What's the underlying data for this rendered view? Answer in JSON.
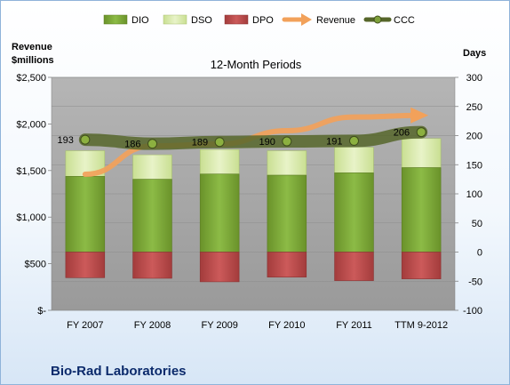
{
  "chart_data": {
    "type": "bar",
    "subtitle": "12-Month Periods",
    "company": "Bio-Rad Laboratories",
    "categories": [
      "FY 2007",
      "FY 2008",
      "FY 2009",
      "FY 2010",
      "FY 2011",
      "TTM 9-2012"
    ],
    "left_axis": {
      "title_lines": [
        "Revenue",
        "$millions"
      ],
      "range": [
        0,
        2500
      ],
      "ticks": [
        0,
        500,
        1000,
        1500,
        2000,
        2500
      ],
      "tick_labels": [
        "$-",
        "$500",
        "$1,000",
        "$1,500",
        "$2,000",
        "$2,500"
      ]
    },
    "right_axis": {
      "title": "Days",
      "range": [
        -100,
        300
      ],
      "ticks": [
        -100,
        -50,
        0,
        50,
        100,
        150,
        200,
        250,
        300
      ],
      "tick_labels": [
        "-100",
        "-50",
        "0",
        "50",
        "100",
        "150",
        "200",
        "250",
        "300"
      ]
    },
    "legend": {
      "position": "top",
      "items": [
        "DIO",
        "DSO",
        "DPO",
        "Revenue",
        "CCC"
      ]
    },
    "colors": {
      "DIO": "#7fa83a",
      "DSO": "#d6e8a8",
      "DPO": "#b84848",
      "Revenue": "#f2a15a",
      "CCC": "#56662a",
      "plot_bg": "#a6a6a6"
    },
    "series": [
      {
        "name": "DIO",
        "axis": "right",
        "values": [
          130,
          125,
          134,
          132,
          136,
          145
        ]
      },
      {
        "name": "DSO",
        "axis": "right",
        "values": [
          44,
          42,
          42,
          42,
          44,
          50
        ]
      },
      {
        "name": "DPO",
        "axis": "right",
        "values": [
          -44,
          -45,
          -51,
          -43,
          -49,
          -46
        ]
      },
      {
        "name": "Revenue",
        "axis": "left",
        "values": [
          1460,
          1764,
          1784,
          1927,
          2074,
          2092
        ]
      },
      {
        "name": "CCC",
        "axis": "right",
        "values": [
          193,
          186,
          189,
          190,
          191,
          206
        ]
      }
    ],
    "ccc_labels": [
      "193",
      "186",
      "189",
      "190",
      "191",
      "206"
    ],
    "grid": true
  }
}
